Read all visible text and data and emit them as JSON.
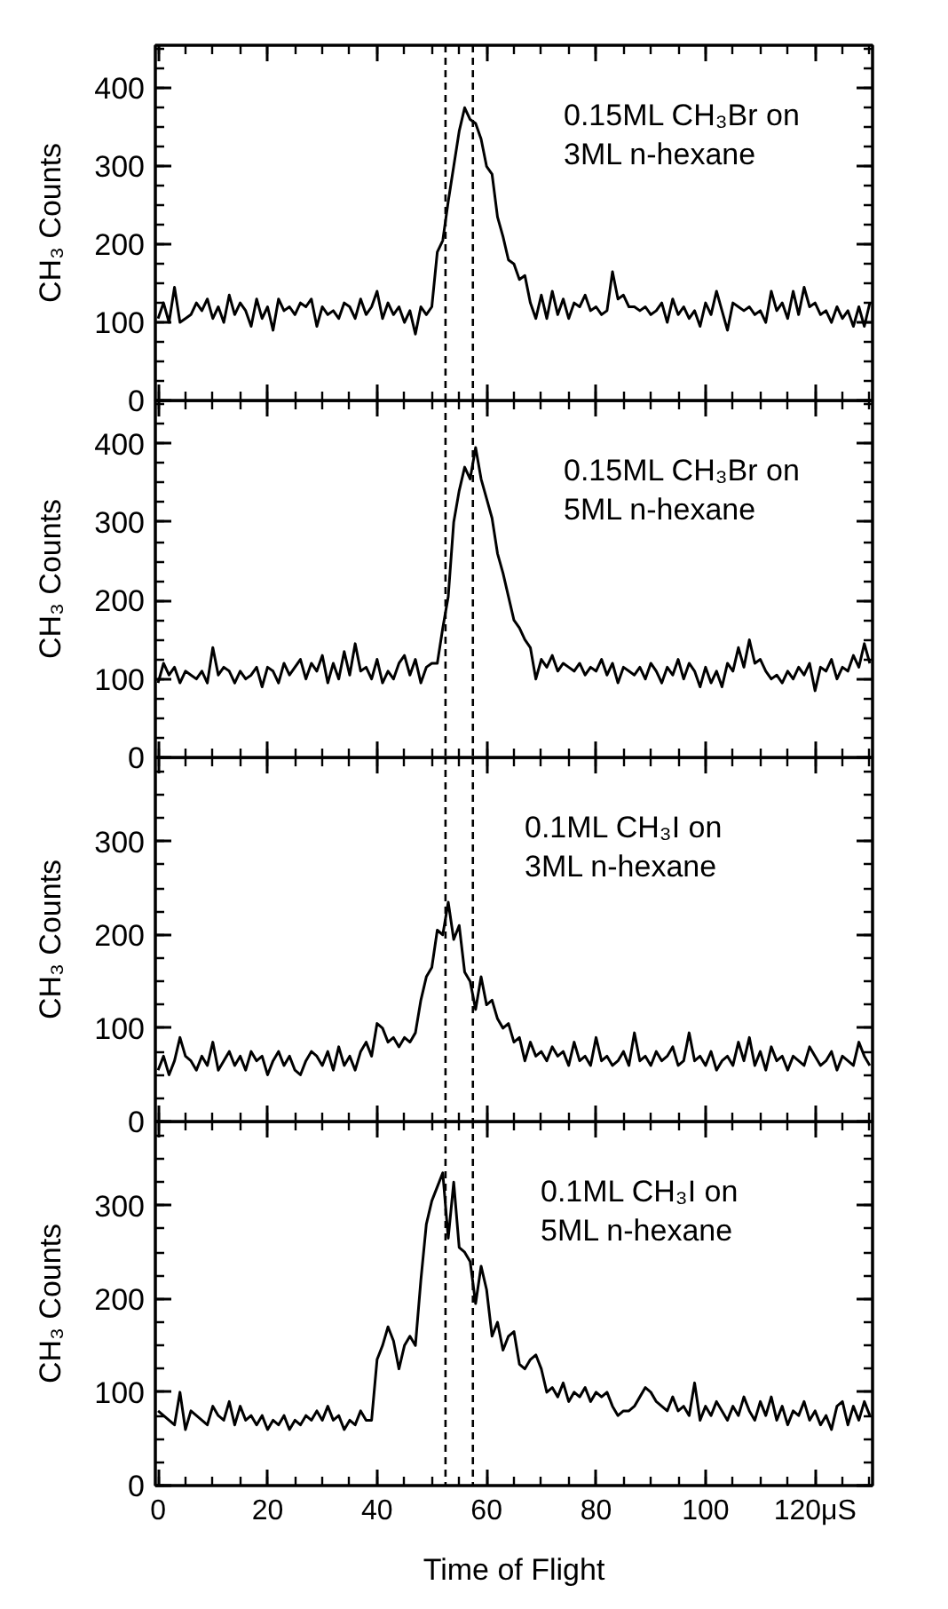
{
  "chart_data": [
    {
      "type": "line",
      "ylabel": "CH₃ Counts",
      "annotations": [
        "0.15ML CH₃Br on 3ML n-hexane"
      ],
      "tick_labels": "y",
      "xlim": [
        -0.5,
        130.5
      ],
      "xticks": [
        0,
        20,
        40,
        60,
        80,
        100,
        120
      ],
      "ylim": [
        0,
        455
      ],
      "yticks": [
        0,
        100,
        200,
        300,
        400
      ],
      "color": "#000000",
      "line_style": "solid",
      "ref_lines": [
        {
          "axis": "x",
          "value": 52.5,
          "color": "#000000",
          "line_style": "dashed"
        },
        {
          "axis": "x",
          "value": 57.5,
          "color": "#000000",
          "line_style": "dashed"
        }
      ],
      "x": [
        0,
        1,
        2,
        3,
        4,
        5,
        6,
        7,
        8,
        9,
        10,
        11,
        12,
        13,
        14,
        15,
        16,
        17,
        18,
        19,
        20,
        21,
        22,
        23,
        24,
        25,
        26,
        27,
        28,
        29,
        30,
        31,
        32,
        33,
        34,
        35,
        36,
        37,
        38,
        39,
        40,
        41,
        42,
        43,
        44,
        45,
        46,
        47,
        48,
        49,
        50,
        51,
        52,
        53,
        54,
        55,
        56,
        57,
        58,
        59,
        60,
        61,
        62,
        63,
        64,
        65,
        66,
        67,
        68,
        69,
        70,
        71,
        72,
        73,
        74,
        75,
        76,
        77,
        78,
        79,
        80,
        81,
        82,
        83,
        84,
        85,
        86,
        87,
        88,
        89,
        90,
        91,
        92,
        93,
        94,
        95,
        96,
        97,
        98,
        99,
        100,
        101,
        102,
        103,
        104,
        105,
        106,
        107,
        108,
        109,
        110,
        111,
        112,
        113,
        114,
        115,
        116,
        117,
        118,
        119,
        120,
        121,
        122,
        123,
        124,
        125,
        126,
        127,
        128,
        129,
        130
      ],
      "values": [
        105,
        125,
        100,
        145,
        100,
        105,
        110,
        125,
        115,
        130,
        105,
        120,
        100,
        135,
        110,
        125,
        115,
        95,
        130,
        105,
        120,
        90,
        130,
        115,
        120,
        110,
        125,
        120,
        130,
        95,
        120,
        110,
        115,
        105,
        125,
        120,
        105,
        130,
        110,
        120,
        140,
        105,
        125,
        110,
        120,
        100,
        115,
        85,
        120,
        110,
        120,
        190,
        205,
        255,
        300,
        345,
        375,
        360,
        355,
        335,
        300,
        290,
        235,
        210,
        180,
        175,
        155,
        160,
        125,
        105,
        135,
        105,
        140,
        110,
        130,
        105,
        125,
        120,
        135,
        115,
        120,
        110,
        115,
        165,
        130,
        135,
        120,
        120,
        115,
        120,
        110,
        115,
        125,
        100,
        130,
        110,
        120,
        105,
        115,
        95,
        125,
        110,
        140,
        115,
        90,
        125,
        120,
        115,
        120,
        110,
        115,
        100,
        140,
        115,
        125,
        105,
        140,
        110,
        145,
        120,
        125,
        110,
        115,
        100,
        120,
        105,
        115,
        95,
        120,
        95,
        125
      ]
    },
    {
      "type": "line",
      "ylabel": "CH₃ Counts",
      "annotations": [
        "0.15ML CH₃Br on 5ML n-hexane"
      ],
      "tick_labels": "y",
      "xlim": [
        -0.5,
        130.5
      ],
      "xticks": [
        0,
        20,
        40,
        60,
        80,
        100,
        120
      ],
      "ylim": [
        0,
        455
      ],
      "yticks": [
        0,
        100,
        200,
        300,
        400
      ],
      "color": "#000000",
      "line_style": "solid",
      "ref_lines": [
        {
          "axis": "x",
          "value": 52.5,
          "color": "#000000",
          "line_style": "dashed"
        },
        {
          "axis": "x",
          "value": 57.5,
          "color": "#000000",
          "line_style": "dashed"
        }
      ],
      "x": [
        0,
        1,
        2,
        3,
        4,
        5,
        6,
        7,
        8,
        9,
        10,
        11,
        12,
        13,
        14,
        15,
        16,
        17,
        18,
        19,
        20,
        21,
        22,
        23,
        24,
        25,
        26,
        27,
        28,
        29,
        30,
        31,
        32,
        33,
        34,
        35,
        36,
        37,
        38,
        39,
        40,
        41,
        42,
        43,
        44,
        45,
        46,
        47,
        48,
        49,
        50,
        51,
        52,
        53,
        54,
        55,
        56,
        57,
        58,
        59,
        60,
        61,
        62,
        63,
        64,
        65,
        66,
        67,
        68,
        69,
        70,
        71,
        72,
        73,
        74,
        75,
        76,
        77,
        78,
        79,
        80,
        81,
        82,
        83,
        84,
        85,
        86,
        87,
        88,
        89,
        90,
        91,
        92,
        93,
        94,
        95,
        96,
        97,
        98,
        99,
        100,
        101,
        102,
        103,
        104,
        105,
        106,
        107,
        108,
        109,
        110,
        111,
        112,
        113,
        114,
        115,
        116,
        117,
        118,
        119,
        120,
        121,
        122,
        123,
        124,
        125,
        126,
        127,
        128,
        129,
        130
      ],
      "values": [
        95,
        120,
        105,
        115,
        95,
        110,
        105,
        100,
        110,
        95,
        140,
        105,
        115,
        110,
        95,
        110,
        100,
        105,
        115,
        90,
        115,
        110,
        95,
        120,
        105,
        115,
        125,
        100,
        120,
        110,
        130,
        95,
        120,
        100,
        135,
        105,
        145,
        110,
        115,
        100,
        125,
        95,
        110,
        100,
        120,
        130,
        105,
        125,
        95,
        115,
        120,
        120,
        165,
        205,
        300,
        340,
        370,
        355,
        395,
        355,
        330,
        305,
        260,
        235,
        205,
        175,
        165,
        150,
        140,
        100,
        125,
        115,
        130,
        110,
        120,
        115,
        110,
        120,
        105,
        115,
        110,
        125,
        105,
        120,
        95,
        115,
        110,
        105,
        115,
        100,
        120,
        110,
        95,
        115,
        105,
        125,
        100,
        120,
        110,
        90,
        115,
        95,
        110,
        90,
        120,
        110,
        140,
        115,
        150,
        120,
        125,
        110,
        100,
        105,
        95,
        110,
        100,
        115,
        105,
        120,
        85,
        115,
        110,
        125,
        100,
        115,
        110,
        130,
        115,
        145,
        120
      ]
    },
    {
      "type": "line",
      "ylabel": "CH₃ Counts",
      "annotations": [
        "0.1ML CH₃I on 3ML n-hexane"
      ],
      "tick_labels": "y",
      "xlim": [
        -0.5,
        130.5
      ],
      "xticks": [
        0,
        20,
        40,
        60,
        80,
        100,
        120
      ],
      "ylim": [
        0,
        390
      ],
      "yticks": [
        0,
        100,
        200,
        300
      ],
      "color": "#000000",
      "line_style": "solid",
      "ref_lines": [
        {
          "axis": "x",
          "value": 52.5,
          "color": "#000000",
          "line_style": "dashed"
        },
        {
          "axis": "x",
          "value": 57.5,
          "color": "#000000",
          "line_style": "dashed"
        }
      ],
      "x": [
        0,
        1,
        2,
        3,
        4,
        5,
        6,
        7,
        8,
        9,
        10,
        11,
        12,
        13,
        14,
        15,
        16,
        17,
        18,
        19,
        20,
        21,
        22,
        23,
        24,
        25,
        26,
        27,
        28,
        29,
        30,
        31,
        32,
        33,
        34,
        35,
        36,
        37,
        38,
        39,
        40,
        41,
        42,
        43,
        44,
        45,
        46,
        47,
        48,
        49,
        50,
        51,
        52,
        53,
        54,
        55,
        56,
        57,
        58,
        59,
        60,
        61,
        62,
        63,
        64,
        65,
        66,
        67,
        68,
        69,
        70,
        71,
        72,
        73,
        74,
        75,
        76,
        77,
        78,
        79,
        80,
        81,
        82,
        83,
        84,
        85,
        86,
        87,
        88,
        89,
        90,
        91,
        92,
        93,
        94,
        95,
        96,
        97,
        98,
        99,
        100,
        101,
        102,
        103,
        104,
        105,
        106,
        107,
        108,
        109,
        110,
        111,
        112,
        113,
        114,
        115,
        116,
        117,
        118,
        119,
        120,
        121,
        122,
        123,
        124,
        125,
        126,
        127,
        128,
        129,
        130
      ],
      "values": [
        55,
        70,
        50,
        65,
        90,
        70,
        65,
        55,
        70,
        60,
        85,
        55,
        65,
        75,
        60,
        70,
        55,
        75,
        65,
        70,
        50,
        65,
        75,
        60,
        70,
        55,
        50,
        65,
        75,
        70,
        60,
        75,
        55,
        80,
        60,
        70,
        55,
        75,
        85,
        70,
        105,
        100,
        85,
        90,
        80,
        90,
        85,
        95,
        130,
        155,
        165,
        205,
        200,
        235,
        195,
        210,
        160,
        150,
        120,
        155,
        125,
        130,
        110,
        100,
        105,
        85,
        90,
        65,
        85,
        70,
        75,
        65,
        80,
        70,
        75,
        60,
        85,
        65,
        70,
        60,
        90,
        65,
        70,
        60,
        65,
        75,
        60,
        95,
        65,
        70,
        60,
        75,
        65,
        70,
        80,
        60,
        65,
        95,
        65,
        70,
        60,
        75,
        55,
        65,
        70,
        60,
        85,
        65,
        90,
        60,
        75,
        55,
        80,
        65,
        70,
        55,
        70,
        65,
        60,
        80,
        70,
        60,
        65,
        75,
        55,
        70,
        65,
        60,
        85,
        70,
        60
      ]
    },
    {
      "type": "line",
      "ylabel": "CH₃ Counts",
      "xlabel": "Time of Flight",
      "annotations": [
        "0.1ML CH₃I on 5ML n-hexane"
      ],
      "xlim": [
        -0.5,
        130.5
      ],
      "xticks": [
        0,
        20,
        40,
        60,
        80,
        100,
        {
          "value": 120,
          "label": "120μS"
        }
      ],
      "ylim": [
        0,
        390
      ],
      "yticks": [
        0,
        100,
        200,
        300
      ],
      "color": "#000000",
      "line_style": "solid",
      "ref_lines": [
        {
          "axis": "x",
          "value": 52.5,
          "color": "#000000",
          "line_style": "dashed"
        },
        {
          "axis": "x",
          "value": 57.5,
          "color": "#000000",
          "line_style": "dashed"
        }
      ],
      "x": [
        0,
        1,
        2,
        3,
        4,
        5,
        6,
        7,
        8,
        9,
        10,
        11,
        12,
        13,
        14,
        15,
        16,
        17,
        18,
        19,
        20,
        21,
        22,
        23,
        24,
        25,
        26,
        27,
        28,
        29,
        30,
        31,
        32,
        33,
        34,
        35,
        36,
        37,
        38,
        39,
        40,
        41,
        42,
        43,
        44,
        45,
        46,
        47,
        48,
        49,
        50,
        51,
        52,
        53,
        54,
        55,
        56,
        57,
        58,
        59,
        60,
        61,
        62,
        63,
        64,
        65,
        66,
        67,
        68,
        69,
        70,
        71,
        72,
        73,
        74,
        75,
        76,
        77,
        78,
        79,
        80,
        81,
        82,
        83,
        84,
        85,
        86,
        87,
        88,
        89,
        90,
        91,
        92,
        93,
        94,
        95,
        96,
        97,
        98,
        99,
        100,
        101,
        102,
        103,
        104,
        105,
        106,
        107,
        108,
        109,
        110,
        111,
        112,
        113,
        114,
        115,
        116,
        117,
        118,
        119,
        120,
        121,
        122,
        123,
        124,
        125,
        126,
        127,
        128,
        129,
        130
      ],
      "values": [
        80,
        75,
        70,
        65,
        100,
        60,
        80,
        75,
        70,
        65,
        85,
        75,
        70,
        90,
        65,
        85,
        70,
        75,
        65,
        75,
        60,
        70,
        65,
        75,
        60,
        70,
        65,
        75,
        70,
        80,
        70,
        85,
        70,
        75,
        60,
        70,
        65,
        80,
        70,
        70,
        135,
        150,
        170,
        155,
        125,
        150,
        160,
        150,
        220,
        280,
        305,
        320,
        335,
        265,
        325,
        255,
        250,
        240,
        195,
        235,
        210,
        160,
        175,
        145,
        160,
        165,
        130,
        125,
        135,
        140,
        125,
        100,
        105,
        95,
        110,
        90,
        100,
        95,
        105,
        90,
        100,
        95,
        100,
        85,
        75,
        80,
        80,
        85,
        95,
        105,
        100,
        90,
        85,
        80,
        95,
        80,
        85,
        75,
        110,
        70,
        85,
        75,
        90,
        80,
        70,
        85,
        75,
        95,
        80,
        70,
        90,
        75,
        95,
        70,
        85,
        65,
        80,
        75,
        90,
        70,
        80,
        65,
        75,
        60,
        85,
        90,
        65,
        85,
        70,
        90,
        75
      ]
    }
  ]
}
